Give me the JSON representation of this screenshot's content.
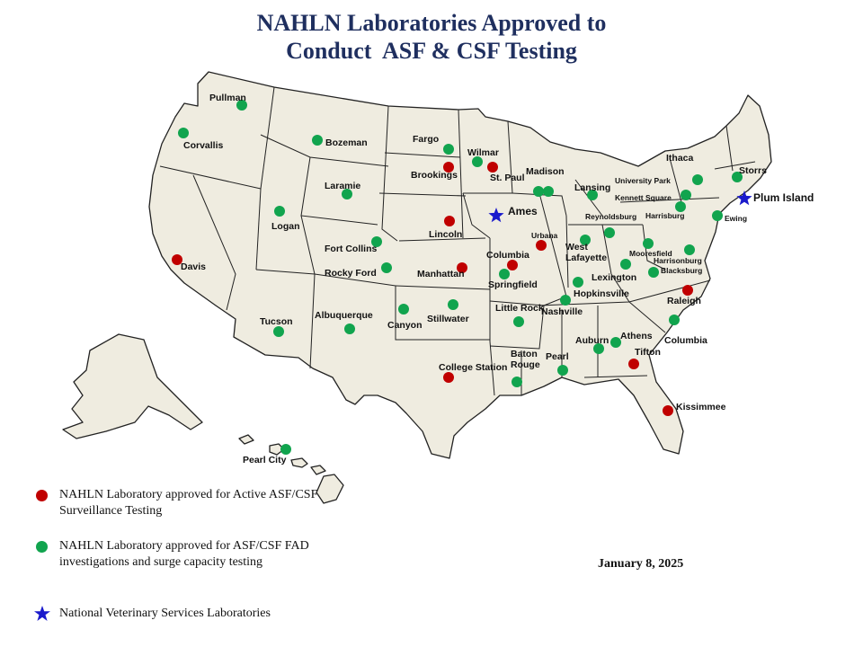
{
  "title_line1": "NAHLN Laboratories Approved to",
  "title_line2": "Conduct  ASF & CSF Testing",
  "date": "January 8, 2025",
  "colors": {
    "active": "#c00000",
    "fad": "#11a44e",
    "nvsl": "#1a1acc",
    "land": "#efece0",
    "border": "#222222"
  },
  "legend": [
    {
      "type": "active",
      "text": "NAHLN Laboratory approved for Active ASF/CSF Surveillance Testing"
    },
    {
      "type": "fad",
      "text": "NAHLN Laboratory approved for ASF/CSF FAD investigations and surge capacity testing"
    },
    {
      "type": "nvsl",
      "text": "National Veterinary Services Laboratories"
    }
  ],
  "labs": [
    {
      "name": "Pullman",
      "type": "fad"
    },
    {
      "name": "Corvallis",
      "type": "fad"
    },
    {
      "name": "Bozeman",
      "type": "fad"
    },
    {
      "name": "Fargo",
      "type": "fad"
    },
    {
      "name": "Wilmar",
      "type": "fad"
    },
    {
      "name": "Brookings",
      "type": "active"
    },
    {
      "name": "St. Paul",
      "type": "active"
    },
    {
      "name": "Madison",
      "type": "fad"
    },
    {
      "name": "Lansing",
      "type": "fad"
    },
    {
      "name": "Ithaca",
      "type": "fad"
    },
    {
      "name": "Storrs",
      "type": "fad"
    },
    {
      "name": "University Park",
      "type": "fad"
    },
    {
      "name": "Kennett Square",
      "type": "fad"
    },
    {
      "name": "Plum Island",
      "type": "nvsl"
    },
    {
      "name": "Harrisburg",
      "type": "fad"
    },
    {
      "name": "Ewing",
      "type": "fad"
    },
    {
      "name": "Reynoldsburg",
      "type": "fad"
    },
    {
      "name": "Laramie",
      "type": "fad"
    },
    {
      "name": "Logan",
      "type": "fad"
    },
    {
      "name": "Ames",
      "type": "nvsl"
    },
    {
      "name": "Lincoln",
      "type": "active"
    },
    {
      "name": "Urbana",
      "type": "active"
    },
    {
      "name": "West Lafayette",
      "type": "fad"
    },
    {
      "name": "Mooresfield",
      "type": "fad"
    },
    {
      "name": "Harrisonburg",
      "type": "fad"
    },
    {
      "name": "Blacksburg",
      "type": "fad"
    },
    {
      "name": "Fort Collins",
      "type": "fad"
    },
    {
      "name": "Rocky Ford",
      "type": "fad"
    },
    {
      "name": "Davis",
      "type": "active"
    },
    {
      "name": "Manhattan",
      "type": "active"
    },
    {
      "name": "Columbia",
      "type": "active"
    },
    {
      "name": "Springfield",
      "type": "fad"
    },
    {
      "name": "Lexington",
      "type": "fad"
    },
    {
      "name": "Hopkinsville",
      "type": "fad"
    },
    {
      "name": "Raleigh",
      "type": "active"
    },
    {
      "name": "Tucson",
      "type": "fad"
    },
    {
      "name": "Albuquerque",
      "type": "fad"
    },
    {
      "name": "Canyon",
      "type": "fad"
    },
    {
      "name": "Stillwater",
      "type": "fad"
    },
    {
      "name": "Little Rock",
      "type": "fad"
    },
    {
      "name": "Nashville",
      "type": "fad"
    },
    {
      "name": "Columbia",
      "type": "fad"
    },
    {
      "name": "Auburn",
      "type": "fad"
    },
    {
      "name": "Athens",
      "type": "fad"
    },
    {
      "name": "Tifton",
      "type": "active"
    },
    {
      "name": "Baton Rouge",
      "type": "fad"
    },
    {
      "name": "Pearl",
      "type": "fad"
    },
    {
      "name": "College Station",
      "type": "active"
    },
    {
      "name": "Kissimmee",
      "type": "active"
    },
    {
      "name": "Pearl City",
      "type": "fad"
    }
  ]
}
